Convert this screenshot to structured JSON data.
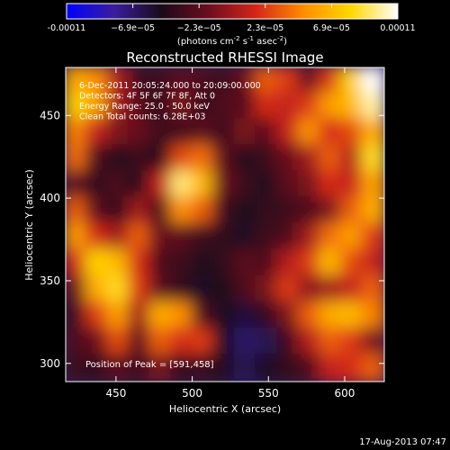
{
  "chart_data": {
    "type": "heatmap",
    "title": "Reconstructed RHESSI Image",
    "xlabel": "Heliocentric X (arcsec)",
    "ylabel": "Heliocentric Y (arcsec)",
    "xlim": [
      416,
      427
    ],
    "xlim_note": "",
    "x_range": [
      417,
      626
    ],
    "y_range": [
      289,
      479
    ],
    "x_ticks": [
      450,
      500,
      550,
      600
    ],
    "y_ticks": [
      300,
      350,
      400,
      450
    ],
    "colorbar": {
      "label": "(photons cm",
      "label_sup1": "-2",
      "label_mid": " s",
      "label_sup2": "-1",
      "label_mid2": " asec",
      "label_sup3": "-2",
      "label_end": ")",
      "tick_labels": [
        "-0.00011",
        "−6.9e−05",
        "−2.3e−05",
        "2.3e−05",
        "6.9e−05",
        "0.00011"
      ],
      "range": [
        -0.00011,
        0.00011
      ],
      "colormap": [
        "#0000ff",
        "#3a1d9e",
        "#1a0a1a",
        "#6b0e1e",
        "#d4261a",
        "#ff8c00",
        "#ffd700",
        "#ffffff"
      ]
    },
    "annotations": [
      "6-Dec-2011 20:05:24.000 to 20:09:00.000",
      "Detectors: 4F 5F 6F 7F 8F, Att 0",
      "Energy Range: 25.0 - 50.0 keV",
      "Clean    Total counts: 6.28E+03"
    ],
    "peak_label": "Position of Peak = [591,458]",
    "peak": [
      591,
      458
    ],
    "intensity_grid_rows_top_to_bottom": [
      [
        0.55,
        0.45,
        0.05,
        -0.3,
        -0.3,
        -0.2,
        -0.25,
        -0.3,
        -0.15,
        0.3,
        0.2,
        -0.15,
        0.2,
        0.7,
        1.0
      ],
      [
        0.7,
        0.5,
        0.0,
        -0.2,
        -0.35,
        -0.1,
        -0.3,
        -0.25,
        -0.2,
        0.15,
        0.1,
        0.2,
        0.5,
        0.6,
        0.9
      ],
      [
        0.4,
        0.1,
        -0.1,
        -0.15,
        -0.3,
        -0.3,
        -0.2,
        -0.3,
        -0.1,
        -0.2,
        0.1,
        0.45,
        0.15,
        0.25,
        0.55
      ],
      [
        0.35,
        -0.25,
        -0.4,
        -0.3,
        -0.4,
        0.25,
        0.35,
        -0.2,
        -0.4,
        -0.3,
        -0.15,
        0.0,
        0.3,
        0.05,
        0.75
      ],
      [
        -0.2,
        -0.35,
        -0.25,
        -0.4,
        0.1,
        0.85,
        0.6,
        -0.15,
        -0.3,
        -0.4,
        -0.2,
        -0.1,
        0.15,
        0.1,
        0.5
      ],
      [
        0.3,
        -0.2,
        -0.35,
        0.0,
        -0.25,
        0.45,
        0.3,
        -0.3,
        -0.4,
        -0.35,
        -0.3,
        -0.25,
        -0.1,
        0.3,
        0.55
      ],
      [
        0.5,
        0.15,
        0.0,
        0.3,
        -0.15,
        -0.2,
        -0.3,
        -0.35,
        -0.45,
        -0.3,
        -0.25,
        0.0,
        0.35,
        0.5,
        0.2
      ],
      [
        0.15,
        0.7,
        0.6,
        0.15,
        -0.25,
        -0.3,
        -0.4,
        -0.35,
        -0.2,
        -0.25,
        0.05,
        0.2,
        0.6,
        0.25,
        0.1
      ],
      [
        -0.15,
        0.55,
        0.75,
        0.2,
        -0.2,
        -0.35,
        -0.45,
        -0.4,
        -0.25,
        -0.1,
        0.2,
        -0.05,
        0.0,
        0.1,
        0.3
      ],
      [
        -0.3,
        0.2,
        0.5,
        0.0,
        0.55,
        0.45,
        -0.25,
        -0.45,
        -0.5,
        -0.35,
        -0.1,
        0.3,
        0.55,
        0.6,
        0.4
      ],
      [
        -0.25,
        -0.15,
        0.25,
        -0.2,
        0.3,
        0.15,
        0.2,
        -0.45,
        -0.6,
        -0.55,
        -0.3,
        0.05,
        0.3,
        0.2,
        -0.1
      ],
      [
        -0.3,
        -0.35,
        -0.2,
        -0.3,
        -0.1,
        -0.35,
        -0.3,
        -0.4,
        -0.55,
        -0.45,
        -0.35,
        -0.25,
        0.1,
        0.15,
        0.3
      ]
    ]
  },
  "footer": {
    "timestamp": "17-Aug-2013 07:47"
  }
}
